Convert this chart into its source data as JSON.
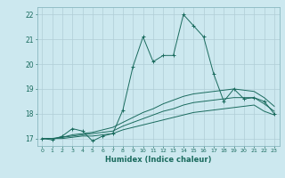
{
  "xlabel": "Humidex (Indice chaleur)",
  "xlim": [
    -0.5,
    23.5
  ],
  "ylim": [
    16.7,
    22.3
  ],
  "yticks": [
    17,
    18,
    19,
    20,
    21,
    22
  ],
  "xticks": [
    0,
    1,
    2,
    3,
    4,
    5,
    6,
    7,
    8,
    9,
    10,
    11,
    12,
    13,
    14,
    15,
    16,
    17,
    18,
    19,
    20,
    21,
    22,
    23
  ],
  "bg_color": "#cce8ef",
  "grid_color": "#b0cdd6",
  "line_color": "#1a6b5e",
  "series1_x": [
    0,
    1,
    2,
    3,
    4,
    5,
    6,
    7,
    8,
    9,
    10,
    11,
    12,
    13,
    14,
    15,
    16,
    17,
    18,
    19,
    20,
    21,
    22,
    23
  ],
  "series1_y": [
    17.0,
    16.95,
    17.1,
    17.4,
    17.3,
    16.9,
    17.1,
    17.2,
    18.15,
    19.9,
    21.1,
    20.1,
    20.35,
    20.35,
    22.0,
    21.55,
    21.1,
    19.6,
    18.5,
    19.0,
    18.6,
    18.65,
    18.5,
    18.0
  ],
  "series2_x": [
    0,
    1,
    2,
    3,
    4,
    5,
    6,
    7,
    8,
    9,
    10,
    11,
    12,
    13,
    14,
    15,
    16,
    17,
    18,
    19,
    20,
    21,
    22,
    23
  ],
  "series2_y": [
    17.0,
    17.0,
    17.0,
    17.05,
    17.1,
    17.1,
    17.15,
    17.2,
    17.35,
    17.45,
    17.55,
    17.65,
    17.75,
    17.85,
    17.95,
    18.05,
    18.1,
    18.15,
    18.2,
    18.25,
    18.3,
    18.35,
    18.1,
    17.95
  ],
  "series3_x": [
    0,
    1,
    2,
    3,
    4,
    5,
    6,
    7,
    8,
    9,
    10,
    11,
    12,
    13,
    14,
    15,
    16,
    17,
    18,
    19,
    20,
    21,
    22,
    23
  ],
  "series3_y": [
    17.0,
    17.0,
    17.05,
    17.1,
    17.15,
    17.2,
    17.25,
    17.3,
    17.5,
    17.65,
    17.8,
    17.95,
    18.1,
    18.2,
    18.35,
    18.45,
    18.5,
    18.55,
    18.6,
    18.65,
    18.65,
    18.65,
    18.4,
    18.1
  ],
  "series4_x": [
    0,
    1,
    2,
    3,
    4,
    5,
    6,
    7,
    8,
    9,
    10,
    11,
    12,
    13,
    14,
    15,
    16,
    17,
    18,
    19,
    20,
    21,
    22,
    23
  ],
  "series4_y": [
    17.0,
    17.0,
    17.05,
    17.15,
    17.2,
    17.25,
    17.35,
    17.45,
    17.65,
    17.85,
    18.05,
    18.2,
    18.4,
    18.55,
    18.7,
    18.8,
    18.85,
    18.9,
    18.95,
    19.0,
    18.95,
    18.9,
    18.65,
    18.3
  ]
}
